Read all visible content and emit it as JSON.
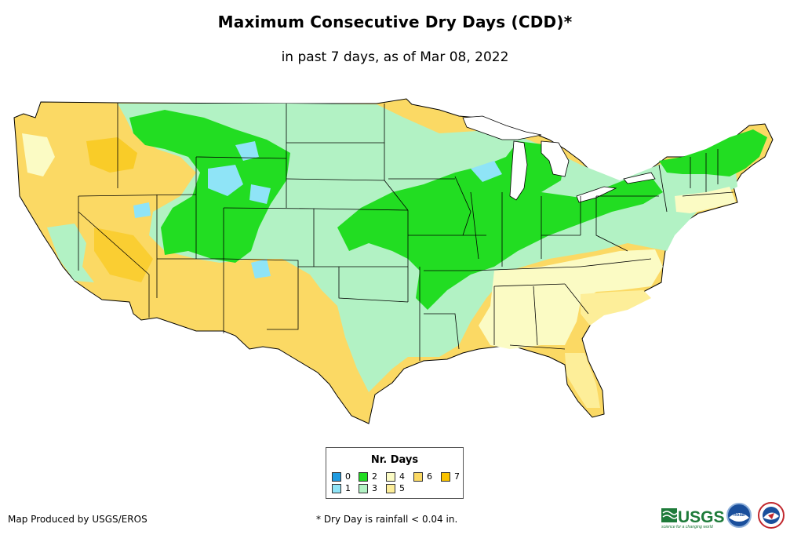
{
  "header": {
    "title": "Maximum Consecutive Dry Days (CDD)*",
    "subtitle": "in past 7 days, as of Mar 08, 2022"
  },
  "legend": {
    "title": "Nr. Days",
    "items": [
      {
        "label": "0",
        "color": "#1f9be0"
      },
      {
        "label": "1",
        "color": "#8fe4f7"
      },
      {
        "label": "2",
        "color": "#22dd22"
      },
      {
        "label": "3",
        "color": "#b2f2c4"
      },
      {
        "label": "4",
        "color": "#fbfbc4"
      },
      {
        "label": "5",
        "color": "#fdee99"
      },
      {
        "label": "6",
        "color": "#fbd964"
      },
      {
        "label": "7",
        "color": "#f9c300"
      }
    ]
  },
  "footer": {
    "credit": "Map Produced by USGS/EROS",
    "footnote": "* Dry Day is rainfall < 0.04 in."
  },
  "logos": {
    "usgs": "USGS",
    "usgs_tagline": "science for a changing world",
    "noaa": "noaa"
  }
}
